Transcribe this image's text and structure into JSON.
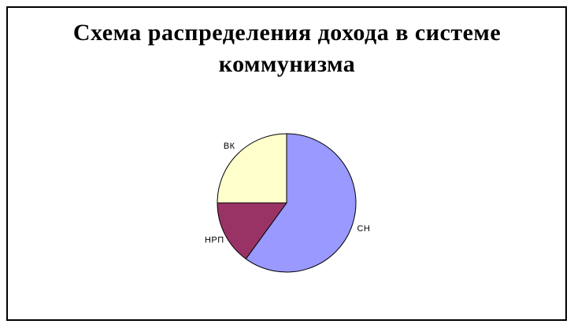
{
  "chart": {
    "title": "Схема распределения дохода в системе коммунизма",
    "title_lines": [
      "Схема распределения дохода в системе",
      "коммунизма"
    ]
  },
  "chart_data": {
    "type": "pie",
    "title": "Схема распределения дохода в системе коммунизма",
    "categories": [
      "СН",
      "НРП",
      "ВК"
    ],
    "values": [
      60,
      15,
      25
    ],
    "values_unit": "percent-estimated-from-angles",
    "colors": [
      "#9999FF",
      "#993366",
      "#FFFFCC"
    ],
    "start_angle_deg": 0,
    "direction": "clockwise",
    "legend": "none",
    "labels_position": "outside-slices",
    "slice_outline_color": "#000000"
  },
  "colors": {
    "background": "#FFFFFF",
    "frame_border": "#000000",
    "title_text": "#000000",
    "label_text": "#000000"
  }
}
